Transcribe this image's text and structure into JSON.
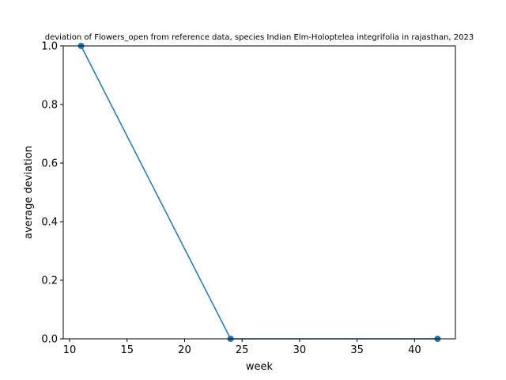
{
  "chart_data": {
    "type": "line",
    "title": "deviation of Flowers_open from reference data, species Indian Elm-Holoptelea integrifolia in rajasthan, 2023",
    "xlabel": "week",
    "ylabel": "average deviation",
    "xlim": [
      9.45,
      43.55
    ],
    "ylim": [
      0.0,
      1.0
    ],
    "xticks": [
      10,
      15,
      20,
      25,
      30,
      35,
      40,
      45
    ],
    "yticks": [
      0.0,
      0.2,
      0.4,
      0.6,
      0.8,
      1.0
    ],
    "xtick_labels": [
      "10",
      "15",
      "20",
      "25",
      "30",
      "35",
      "40"
    ],
    "ytick_labels": [
      "0.0",
      "0.2",
      "0.4",
      "0.6",
      "0.8",
      "1.0"
    ],
    "grid": false,
    "series": [
      {
        "x": [
          11,
          24,
          42
        ],
        "y": [
          1.0,
          0.0,
          0.0
        ],
        "color": "#1f77b4"
      }
    ]
  }
}
